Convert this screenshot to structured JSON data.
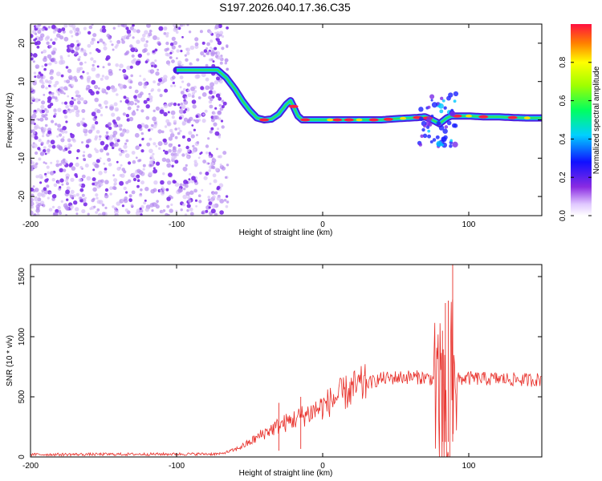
{
  "figure_title": "S197.2026.040.17.36.C35",
  "colors": {
    "snr_line": "#e8302a",
    "axis": "#000000",
    "scatter_noise": "#a070e0"
  },
  "chart_data": [
    {
      "type": "heatmap",
      "title": "S197.2026.040.17.36.C35",
      "xlabel": "Height of straight line (km)",
      "ylabel": "Frequency (Hz)",
      "xlim": [
        -200,
        150
      ],
      "ylim": [
        -25,
        25
      ],
      "xticks": [
        -200,
        -100,
        0,
        100
      ],
      "yticks": [
        -20,
        -10,
        0,
        10,
        20
      ],
      "ridge": {
        "x": [
          -100,
          -90,
          -80,
          -72,
          -66,
          -60,
          -55,
          -50,
          -45,
          -40,
          -35,
          -30,
          -25,
          -22,
          -20,
          -17,
          -14,
          -10,
          -5,
          0,
          10,
          20,
          30,
          40,
          50,
          60,
          65,
          70,
          75,
          80,
          85,
          88,
          90,
          100,
          110,
          120,
          130,
          140,
          150
        ],
        "freq": [
          13,
          13,
          13,
          13,
          11,
          8,
          5,
          2.5,
          0.5,
          0,
          0.2,
          1.5,
          4,
          5,
          3.5,
          1,
          0,
          0,
          0,
          0,
          0,
          0,
          0,
          0,
          0.3,
          0.5,
          0.6,
          0.8,
          0,
          -1,
          0.5,
          1,
          1,
          1,
          0.8,
          0.8,
          0.6,
          0.5,
          0.5
        ]
      },
      "colorbar": {
        "label": "Normalized spectral amplitude",
        "range": [
          0,
          1
        ],
        "ticks": [
          0.0,
          0.2,
          0.4,
          0.6,
          0.8
        ],
        "tick_labels": [
          "0.0",
          "0.2",
          "0.4",
          "0.6",
          "0.8"
        ]
      }
    },
    {
      "type": "line",
      "xlabel": "Height of straight line (km)",
      "ylabel": "SNR (10 * v/v)",
      "xlim": [
        -200,
        150
      ],
      "ylim": [
        0,
        1600
      ],
      "xticks": [
        -200,
        -100,
        0,
        100
      ],
      "yticks": [
        0,
        500,
        1000,
        1500
      ],
      "envelope": {
        "x": [
          -200,
          -70,
          -60,
          -50,
          -40,
          -30,
          -20,
          -10,
          0,
          10,
          20,
          30,
          40,
          50,
          60,
          70,
          75,
          80,
          85,
          90,
          95,
          100,
          110,
          120,
          130,
          140,
          150
        ],
        "y": [
          20,
          25,
          60,
          120,
          200,
          260,
          310,
          360,
          420,
          500,
          560,
          610,
          650,
          660,
          665,
          660,
          650,
          640,
          620,
          640,
          650,
          655,
          650,
          650,
          645,
          640,
          645
        ]
      },
      "peaks": [
        {
          "x": 84,
          "y": 1280
        },
        {
          "x": 86,
          "y": 1300
        },
        {
          "x": 89,
          "y": 1600
        },
        {
          "x": 82,
          "y": 1050
        },
        {
          "x": -15,
          "y": 500
        },
        {
          "x": -30,
          "y": 450
        }
      ]
    }
  ]
}
